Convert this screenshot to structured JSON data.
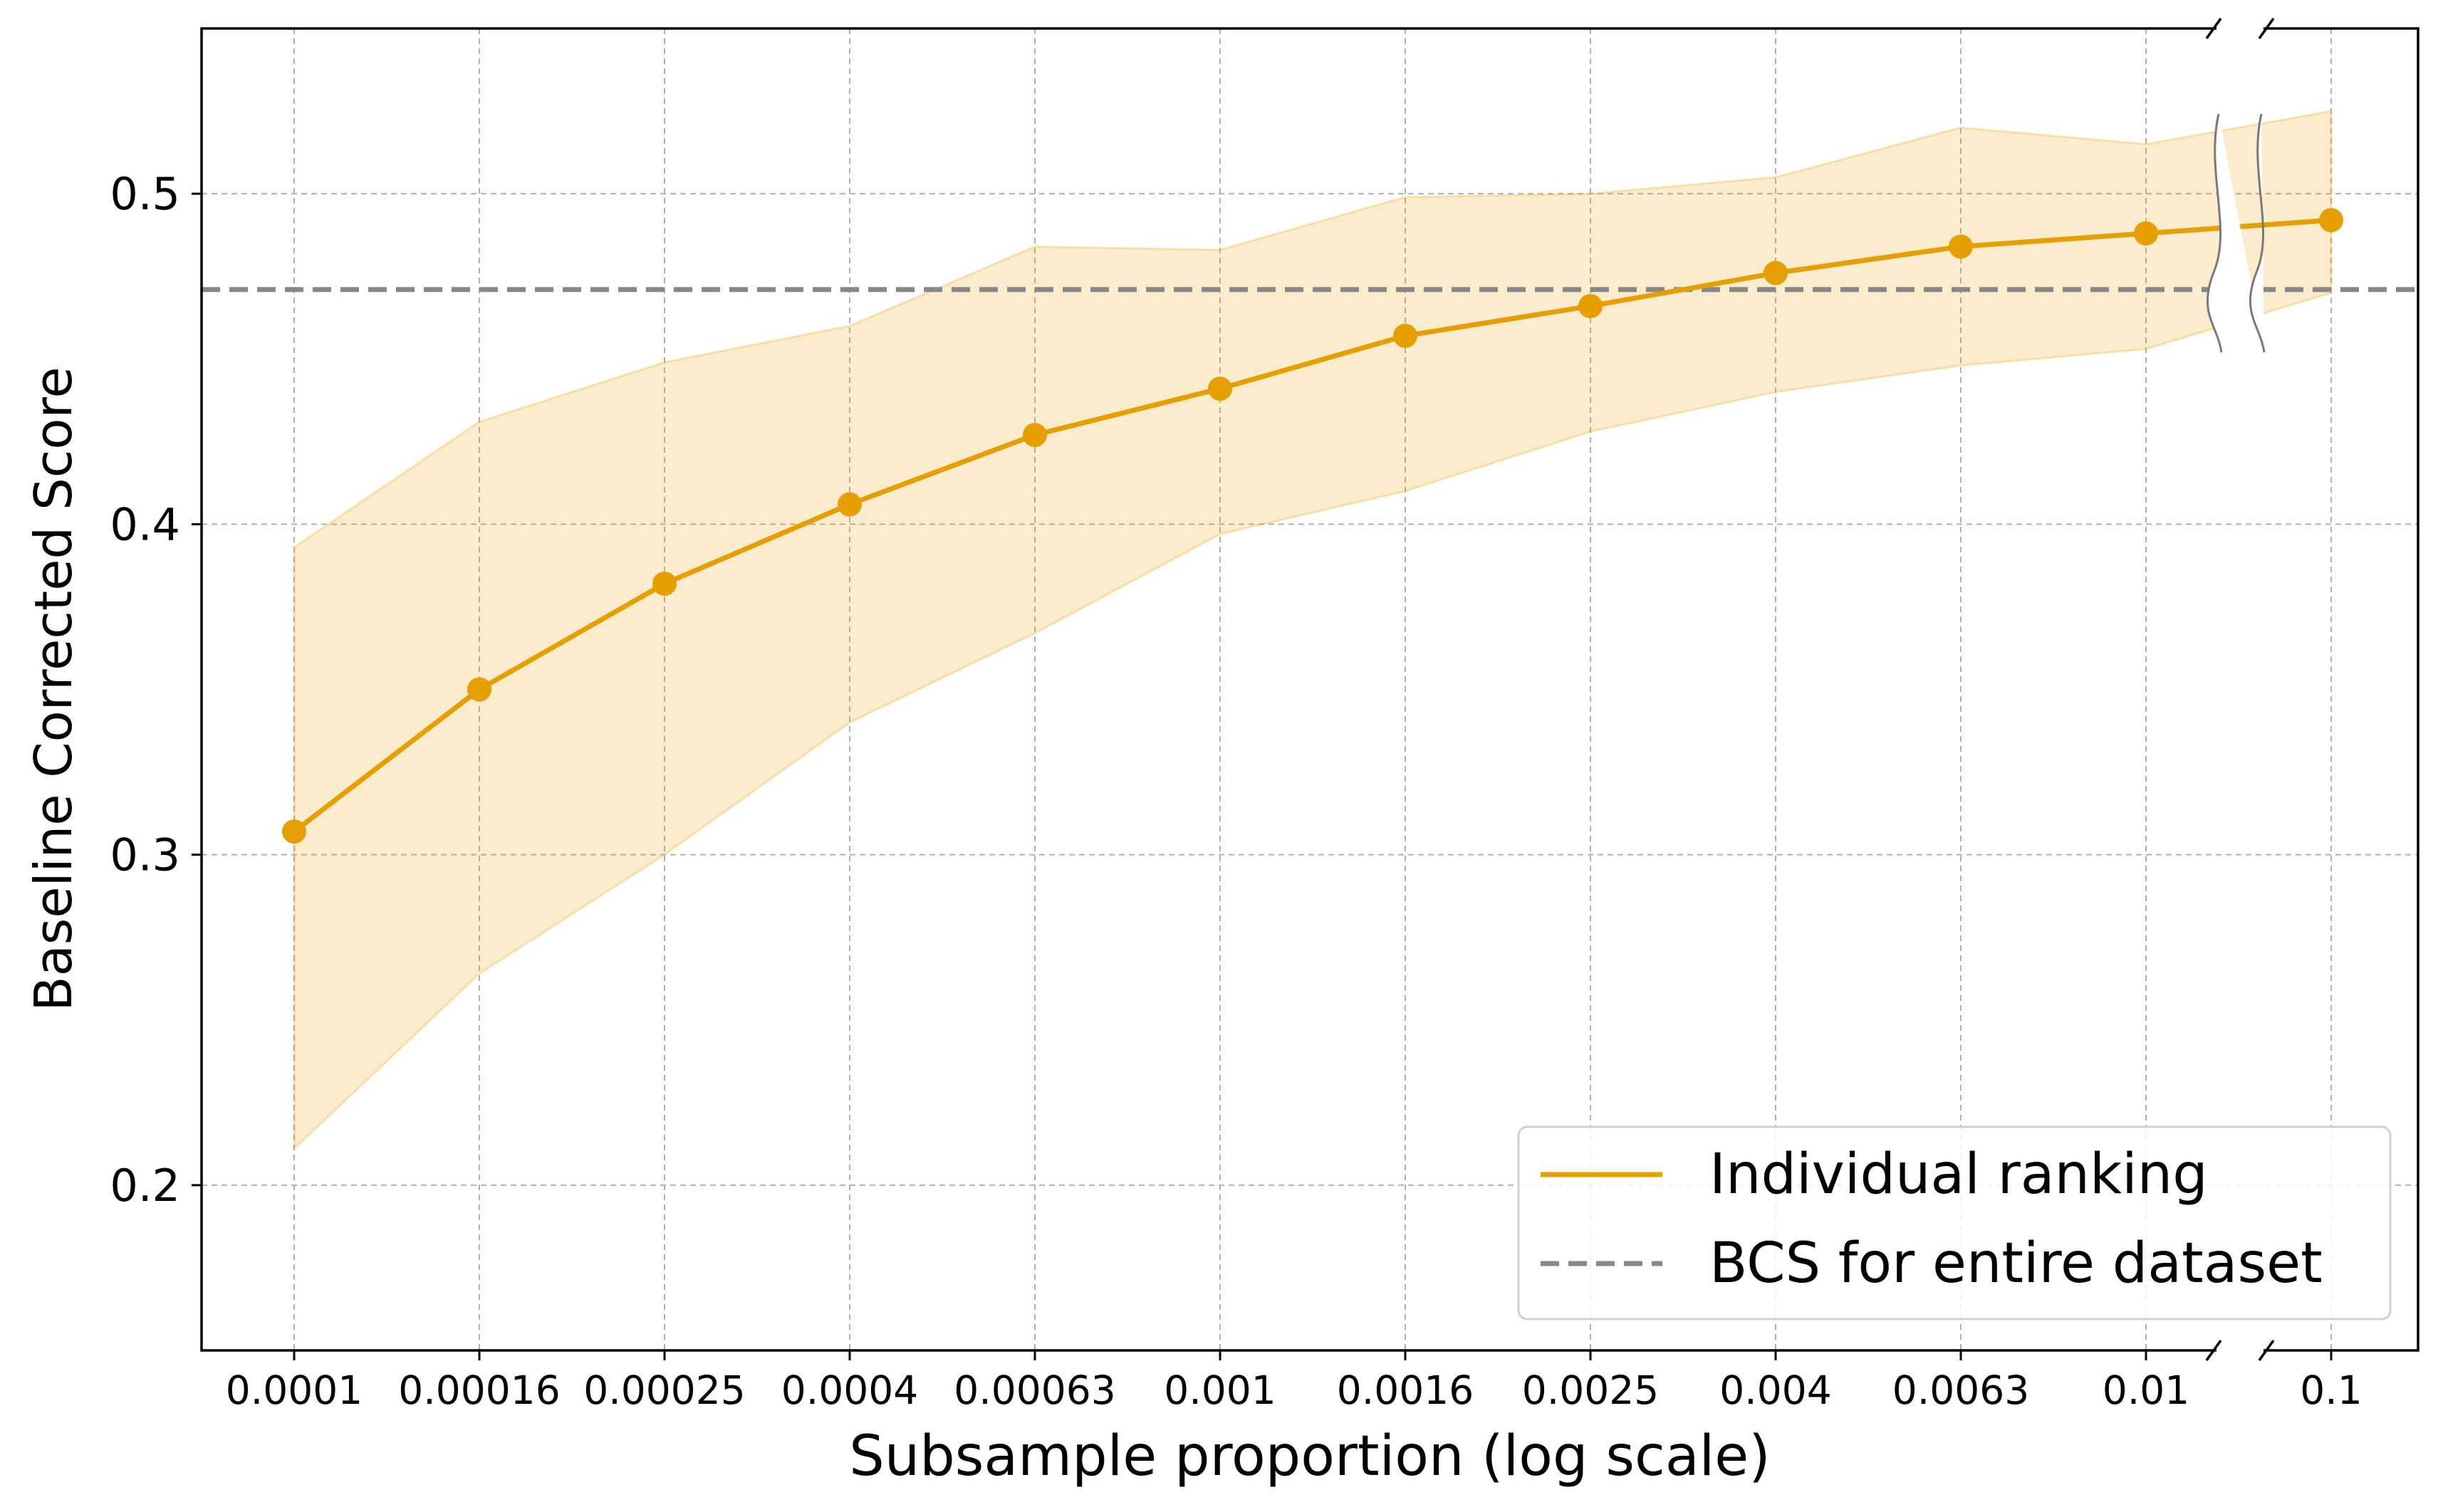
{
  "chart_data": {
    "type": "line",
    "xlabel": "Subsample proportion (log scale)",
    "ylabel": "Baseline Corrected Score",
    "x_scale": "log",
    "x_axis_break": "between 0.01 and 0.1",
    "categories": [
      "0.0001",
      "0.00016",
      "0.00025",
      "0.0004",
      "0.00063",
      "0.001",
      "0.0016",
      "0.0025",
      "0.004",
      "0.0063",
      "0.01",
      "0.1"
    ],
    "ylim": [
      0.15,
      0.55
    ],
    "yticks": [
      "0.2",
      "0.3",
      "0.4",
      "0.5"
    ],
    "grid": true,
    "legend_position": "lower-right",
    "series": [
      {
        "name": "Individual ranking",
        "color": "#E69F00",
        "values": [
          0.307,
          0.35,
          0.382,
          0.406,
          0.427,
          0.441,
          0.457,
          0.466,
          0.476,
          0.484,
          0.488,
          0.492
        ],
        "band_lower": [
          0.211,
          0.264,
          0.3,
          0.34,
          0.367,
          0.397,
          0.41,
          0.428,
          0.44,
          0.448,
          0.453,
          0.47
        ],
        "band_upper": [
          0.393,
          0.431,
          0.449,
          0.46,
          0.484,
          0.483,
          0.499,
          0.5,
          0.505,
          0.52,
          0.515,
          0.525
        ]
      }
    ],
    "reference_line": {
      "name": "BCS for entire dataset",
      "value": 0.471,
      "color": "#888888",
      "style": "dashed"
    }
  }
}
